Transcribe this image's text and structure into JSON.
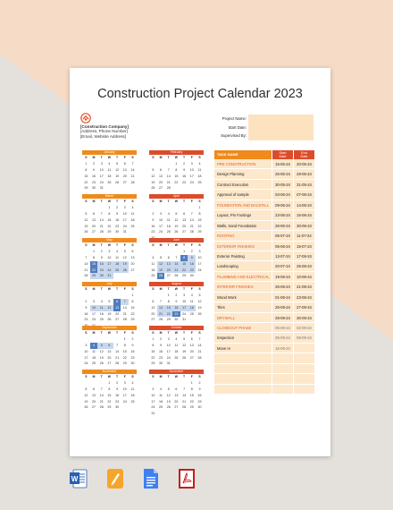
{
  "document": {
    "title": "Construction Project Calendar 2023",
    "company": [
      "[Construction Company]",
      "[Address, Phone Number]",
      "[Email, Website Address]"
    ],
    "project_fields": [
      {
        "label": "Project Name:"
      },
      {
        "label": "Start Date:"
      },
      {
        "label": "Supervised By:"
      }
    ],
    "day_headers": [
      "S",
      "M",
      "T",
      "W",
      "T",
      "F",
      "S"
    ]
  },
  "months": [
    {
      "name": "January",
      "color": "#f08a1c",
      "start": 0,
      "days": 31,
      "hl": [],
      "lt": []
    },
    {
      "name": "February",
      "color": "#dc4c2b",
      "start": 3,
      "days": 28,
      "hl": [],
      "lt": []
    },
    {
      "name": "March",
      "color": "#f08a1c",
      "start": 3,
      "days": 31,
      "hl": [],
      "lt": []
    },
    {
      "name": "April",
      "color": "#dc4c2b",
      "start": 6,
      "days": 30,
      "hl": [],
      "lt": []
    },
    {
      "name": "May",
      "color": "#f08a1c",
      "start": 1,
      "days": 31,
      "hl": [
        15,
        22
      ],
      "lt": [
        16,
        17,
        18,
        19,
        23,
        24,
        25,
        26,
        29,
        30,
        31
      ]
    },
    {
      "name": "June",
      "color": "#dc4c2b",
      "start": 4,
      "days": 30,
      "hl": [
        8,
        26
      ],
      "lt": [
        9,
        12,
        13,
        14,
        15,
        16,
        19,
        20,
        21,
        22,
        23
      ]
    },
    {
      "name": "July",
      "color": "#f08a1c",
      "start": 6,
      "days": 31,
      "hl": [
        6,
        13
      ],
      "lt": [
        7,
        10,
        11,
        12
      ]
    },
    {
      "name": "August",
      "color": "#dc4c2b",
      "start": 2,
      "days": 31,
      "hl": [
        23
      ],
      "lt": [
        14,
        15,
        16,
        17,
        18,
        21,
        22
      ]
    },
    {
      "name": "September",
      "color": "#f08a1c",
      "start": 5,
      "days": 30,
      "hl": [
        4
      ],
      "lt": [
        5,
        6
      ]
    },
    {
      "name": "October",
      "color": "#dc4c2b",
      "start": 0,
      "days": 31,
      "hl": [],
      "lt": []
    },
    {
      "name": "November",
      "color": "#f08a1c",
      "start": 3,
      "days": 30,
      "hl": [],
      "lt": []
    },
    {
      "name": "December",
      "color": "#dc4c2b",
      "start": 5,
      "days": 31,
      "hl": [],
      "lt": []
    }
  ],
  "task_table": {
    "headers": {
      "name": "TASK NAME",
      "start": [
        "Start",
        "Date"
      ],
      "end": [
        "End",
        "Date"
      ]
    },
    "rows": [
      {
        "name": "PRE CONSTRUCTION",
        "phase": true,
        "start": "15-05-24",
        "end": "20-05-24",
        "light": false
      },
      {
        "name": "Design Planning",
        "phase": false,
        "start": "25-05-24",
        "end": "28-05-24",
        "light": false
      },
      {
        "name": "Contract Execution",
        "phase": false,
        "start": "30-05-24",
        "end": "31-05-24",
        "light": false
      },
      {
        "name": "Approval of sample",
        "phase": false,
        "start": "03-06-24",
        "end": "07-06-24",
        "light": false
      },
      {
        "name": "FOUNDATION AND BACKFILL",
        "phase": true,
        "start": "09-06-24",
        "end": "14-06-24",
        "light": false
      },
      {
        "name": "Layout, Pin Footings",
        "phase": false,
        "start": "23-06-24",
        "end": "16-06-24",
        "light": false
      },
      {
        "name": "Walls, Sand Foundation",
        "phase": false,
        "start": "26-06-24",
        "end": "30-06-24",
        "light": false
      },
      {
        "name": "ROOFING",
        "phase": true,
        "start": "05-07-24",
        "end": "11-07-24",
        "light": false
      },
      {
        "name": "EXTERIOR FINISHES",
        "phase": true,
        "start": "05-08-24",
        "end": "15-07-24",
        "light": false
      },
      {
        "name": "Exterior Painting",
        "phase": false,
        "start": "13-07-24",
        "end": "17-08-24",
        "light": false
      },
      {
        "name": "Landscaping",
        "phase": false,
        "start": "20-07-24",
        "end": "25-08-24",
        "light": false
      },
      {
        "name": "PLUMBING AND ELECTRICAL",
        "phase": true,
        "start": "19-08-24",
        "end": "10-08-24",
        "light": false
      },
      {
        "name": "INTERIOR FINISHES",
        "phase": true,
        "start": "26-08-24",
        "end": "21-08-24",
        "light": false
      },
      {
        "name": "Wood Work",
        "phase": false,
        "start": "01-09-24",
        "end": "23-08-24",
        "light": false
      },
      {
        "name": "Tiles",
        "phase": false,
        "start": "26-09-24",
        "end": "27-09-24",
        "light": false
      },
      {
        "name": "DRYWALL",
        "phase": true,
        "start": "29-09-24",
        "end": "30-09-24",
        "light": false
      },
      {
        "name": "CLOSEOUT PHASE",
        "phase": true,
        "start": "05-09-24",
        "end": "02-09-24",
        "light": true
      },
      {
        "name": "Inspection",
        "phase": false,
        "start": "05-09-24",
        "end": "08-09-24",
        "light": true
      },
      {
        "name": "Move In",
        "phase": false,
        "start": "15-09-24",
        "end": "",
        "light": true
      },
      {
        "name": "",
        "phase": false,
        "start": "",
        "end": "",
        "light": false
      },
      {
        "name": "",
        "phase": false,
        "start": "",
        "end": "",
        "light": false
      },
      {
        "name": "",
        "phase": false,
        "start": "",
        "end": "",
        "light": false
      },
      {
        "name": "",
        "phase": false,
        "start": "",
        "end": "",
        "light": false
      }
    ]
  },
  "file_formats": [
    "word-icon",
    "pages-icon",
    "google-docs-icon",
    "pdf-icon"
  ],
  "colors": {
    "orange": "#f08a1c",
    "red": "#dc4c2b",
    "highlight": "#4f7dc0",
    "task_bg": "#fde8cc",
    "field_bg": "#fde2c0"
  }
}
